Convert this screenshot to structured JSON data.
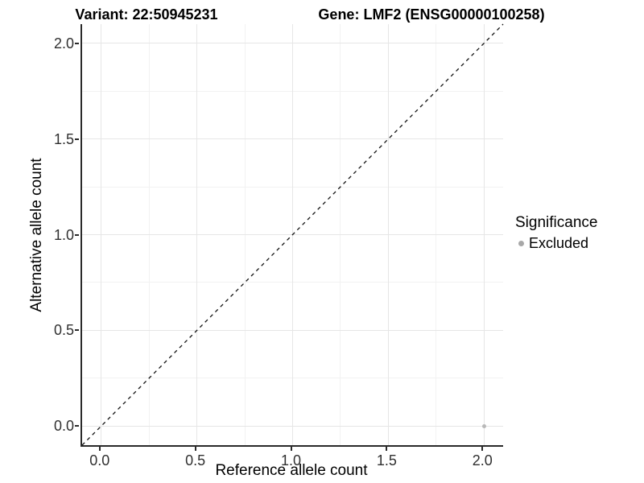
{
  "titles": {
    "variant": "Variant: 22:50945231",
    "gene": "Gene: LMF2 (ENSG00000100258)"
  },
  "axes": {
    "x": {
      "label": "Reference allele count",
      "tick_labels": [
        "0.0",
        "0.5",
        "1.0",
        "1.5",
        "2.0"
      ]
    },
    "y": {
      "label": "Alternative allele count",
      "tick_labels": [
        "0.0",
        "0.5",
        "1.0",
        "1.5",
        "2.0"
      ]
    }
  },
  "legend": {
    "title": "Significance",
    "items": [
      {
        "label": "Excluded",
        "color": "#a8a8a8"
      }
    ]
  },
  "colors": {
    "point": "#b8b8b8",
    "grid_major": "#e6e6e6",
    "grid_minor": "#f2f2f2",
    "axis_line": "#2a2a2a",
    "dashed_line": "#111111"
  },
  "chart_data": {
    "type": "scatter",
    "title": "Variant: 22:50945231 — Gene: LMF2 (ENSG00000100258)",
    "xlabel": "Reference allele count",
    "ylabel": "Alternative allele count",
    "xlim": [
      -0.1,
      2.1
    ],
    "ylim": [
      -0.1,
      2.1
    ],
    "x_ticks": [
      0.0,
      0.5,
      1.0,
      1.5,
      2.0
    ],
    "y_ticks": [
      0.0,
      0.5,
      1.0,
      1.5,
      2.0
    ],
    "x_minor_ticks": [
      0.25,
      0.75,
      1.25,
      1.75
    ],
    "y_minor_ticks": [
      0.25,
      0.75,
      1.25,
      1.75
    ],
    "grid": "major+minor",
    "legend_position": "right",
    "series": [
      {
        "name": "Excluded",
        "color": "#b8b8b8",
        "points": [
          {
            "x": 2.0,
            "y": 0.0
          }
        ]
      }
    ],
    "reference_line": {
      "type": "identity y=x",
      "style": "dashed",
      "from": [
        -0.1,
        -0.1
      ],
      "to": [
        2.1,
        2.1
      ]
    }
  }
}
